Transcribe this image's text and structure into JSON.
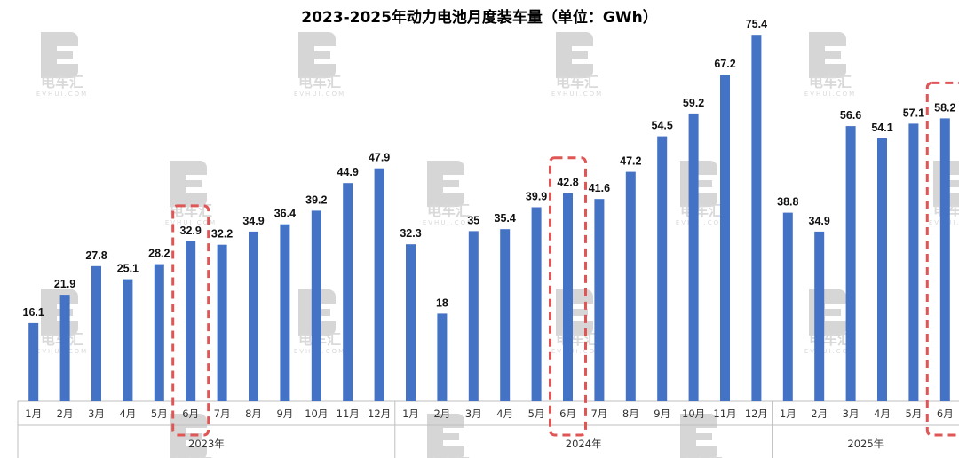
{
  "chart_data": {
    "type": "bar",
    "title": "2023-2025年动力电池月度装车量（单位：GWh）",
    "groups": [
      {
        "name": "2023年",
        "categories": [
          "1月",
          "2月",
          "3月",
          "4月",
          "5月",
          "6月",
          "7月",
          "8月",
          "9月",
          "10月",
          "11月",
          "12月"
        ],
        "values": [
          16.1,
          21.9,
          27.8,
          25.1,
          28.2,
          32.9,
          32.2,
          34.9,
          36.4,
          39.2,
          44.9,
          47.9
        ],
        "labels": [
          "16.1",
          "21.9",
          "27.8",
          "25.1",
          "28.2",
          "32.9",
          "32.2",
          "34.9",
          "36.4",
          "39.2",
          "44.9",
          "47.9"
        ]
      },
      {
        "name": "2024年",
        "categories": [
          "1月",
          "2月",
          "3月",
          "4月",
          "5月",
          "6月",
          "7月",
          "8月",
          "9月",
          "10月",
          "11月",
          "12月"
        ],
        "values": [
          32.3,
          18,
          35,
          35.4,
          39.9,
          42.8,
          41.6,
          47.2,
          54.5,
          59.2,
          67.2,
          75.4
        ],
        "labels": [
          "32.3",
          "18",
          "35",
          "35.4",
          "39.9",
          "42.8",
          "41.6",
          "47.2",
          "54.5",
          "59.2",
          "67.2",
          "75.4"
        ]
      },
      {
        "name": "2025年",
        "categories": [
          "1月",
          "2月",
          "3月",
          "4月",
          "5月",
          "6月"
        ],
        "values": [
          38.8,
          34.9,
          56.6,
          54.1,
          57.1,
          58.2
        ],
        "labels": [
          "38.8",
          "34.9",
          "56.6",
          "54.1",
          "57.1",
          "58.2"
        ]
      }
    ],
    "highlighted_category": "6月",
    "bar_color": "#4472c4",
    "highlight_color": "#e05555",
    "ylim": [
      0,
      80
    ],
    "grid": false,
    "legend": "none"
  },
  "watermark": {
    "text": "电车汇",
    "sub": "EVHUI.COM"
  }
}
